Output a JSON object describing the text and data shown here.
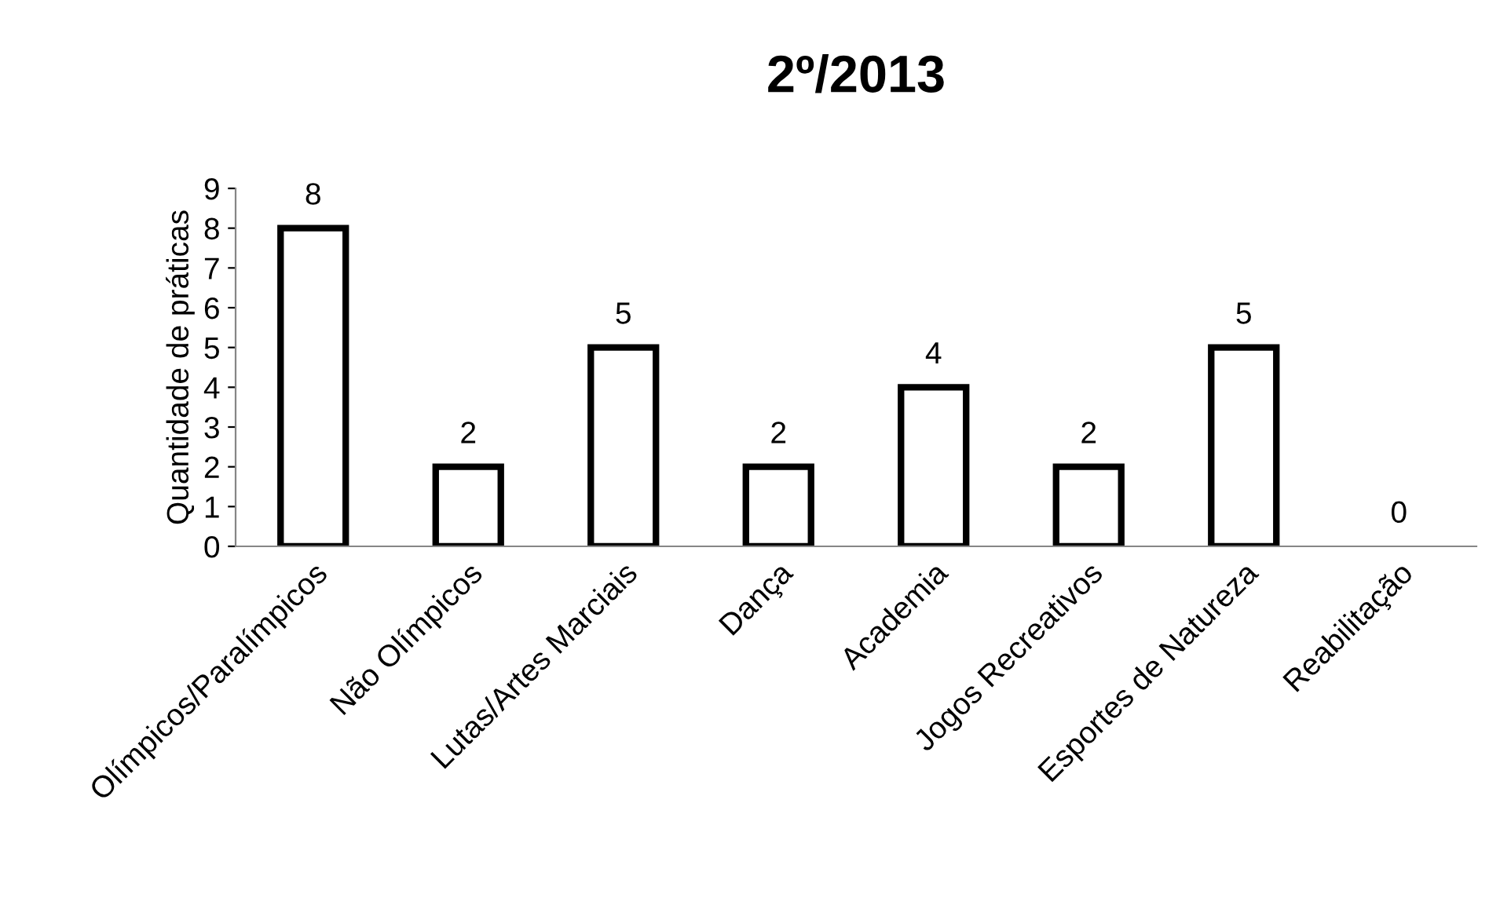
{
  "chart_data": {
    "type": "bar",
    "title": "2º/2013",
    "ylabel": "Quantidade de práticas",
    "categories": [
      "Olímpicos/Paralímpicos",
      "Não Olímpicos",
      "Lutas/Artes Marciais",
      "Dança",
      "Academia",
      "Jogos Recreativos",
      "Esportes de Natureza",
      "Reabilitação"
    ],
    "values": [
      8,
      2,
      5,
      2,
      4,
      2,
      5,
      0
    ],
    "color": "#ffffff",
    "ylim": [
      0,
      9
    ],
    "yticks": [
      0,
      1,
      2,
      3,
      4,
      5,
      6,
      7,
      8,
      9
    ],
    "grid": false,
    "data_labels": true
  }
}
